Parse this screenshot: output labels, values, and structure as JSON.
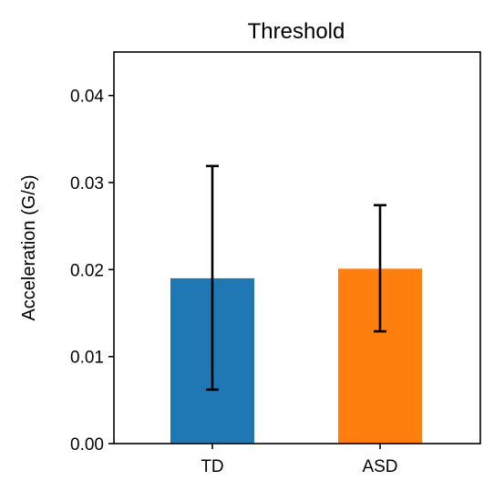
{
  "chart_data": {
    "type": "bar",
    "title": "Threshold",
    "xlabel": "",
    "ylabel": "Acceleration (G/s)",
    "categories": [
      "TD",
      "ASD"
    ],
    "values": [
      0.019,
      0.0201
    ],
    "error_low": [
      0.0062,
      0.0129
    ],
    "error_high": [
      0.0319,
      0.0274
    ],
    "colors": [
      "#1f77b4",
      "#ff7f0e"
    ],
    "ylim": [
      0,
      0.045
    ],
    "yticks": [
      "0.00",
      "0.01",
      "0.02",
      "0.03",
      "0.04"
    ],
    "ytick_values": [
      0,
      0.01,
      0.02,
      0.03,
      0.04
    ],
    "grid": false,
    "error_bar_color": "#000000"
  }
}
